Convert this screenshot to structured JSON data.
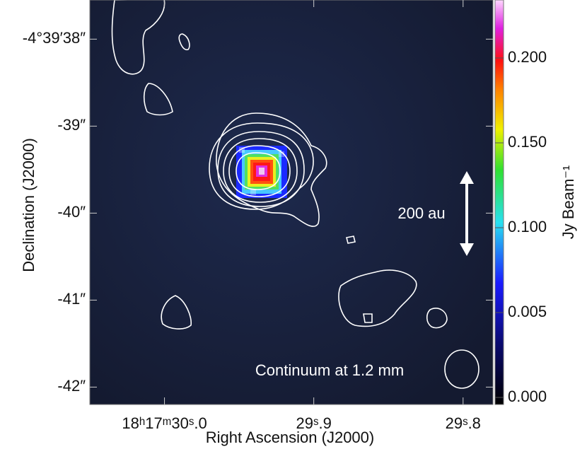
{
  "chart_data": {
    "type": "image",
    "xlabel": "Right Ascension (J2000)",
    "ylabel": "Declination (J2000)",
    "xlim": [
      30.05,
      29.78
    ],
    "xticks": [
      {
        "value": 30.0,
        "label": "18ʰ17ᵐ30ˢ.0"
      },
      {
        "value": 29.9,
        "label": "29ˢ.9"
      },
      {
        "value": 29.8,
        "label": "29ˢ.8"
      }
    ],
    "ylim": [
      -42.2,
      -37.55
    ],
    "yticks": [
      {
        "value": -38,
        "label": "-4°39′38″"
      },
      {
        "value": -39,
        "label": "-39″"
      },
      {
        "value": -40,
        "label": "-40″"
      },
      {
        "value": -41,
        "label": "-41″"
      },
      {
        "value": -42,
        "label": "-42″"
      }
    ],
    "colorbar": {
      "label": "Jy Beam⁻¹",
      "tick_labels": [
        "0.000",
        "0.005",
        "0.100",
        "0.150",
        "0.200"
      ]
    },
    "annotations": [
      "200 au",
      "Continuum at 1.2 mm"
    ]
  }
}
